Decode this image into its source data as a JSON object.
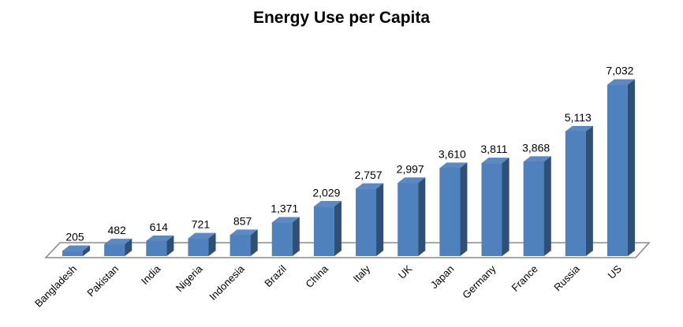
{
  "chart_data": {
    "type": "bar",
    "style": "3d-column",
    "title": "Energy Use per Capita",
    "xlabel": "",
    "ylabel": "",
    "categories": [
      "Bangladesh",
      "Pakistan",
      "India",
      "Nigeria",
      "Indonesia",
      "Brazil",
      "China",
      "Italy",
      "UK",
      "Japan",
      "Germany",
      "France",
      "Russia",
      "US"
    ],
    "values": [
      205,
      482,
      614,
      721,
      857,
      1371,
      2029,
      2757,
      2997,
      3610,
      3811,
      3868,
      5113,
      7032
    ],
    "value_labels": [
      "205",
      "482",
      "614",
      "721",
      "857",
      "1,371",
      "2,029",
      "2,757",
      "2,997",
      "3,610",
      "3,811",
      "3,868",
      "5,113",
      "7,032"
    ],
    "ylim": [
      0,
      7500
    ],
    "grid": false,
    "legend": false,
    "data_labels": "above-bars",
    "category_label_rotation_deg": 45,
    "colors": {
      "bar_front": "#4F81BD",
      "bar_side": "#2E5077",
      "bar_top": "#5E89C0",
      "bar_edge": "#24466B",
      "floor_stroke": "#8C8C8C",
      "floor_fill": "#FFFFFF",
      "text": "#000000",
      "background": "#FFFFFF"
    }
  }
}
